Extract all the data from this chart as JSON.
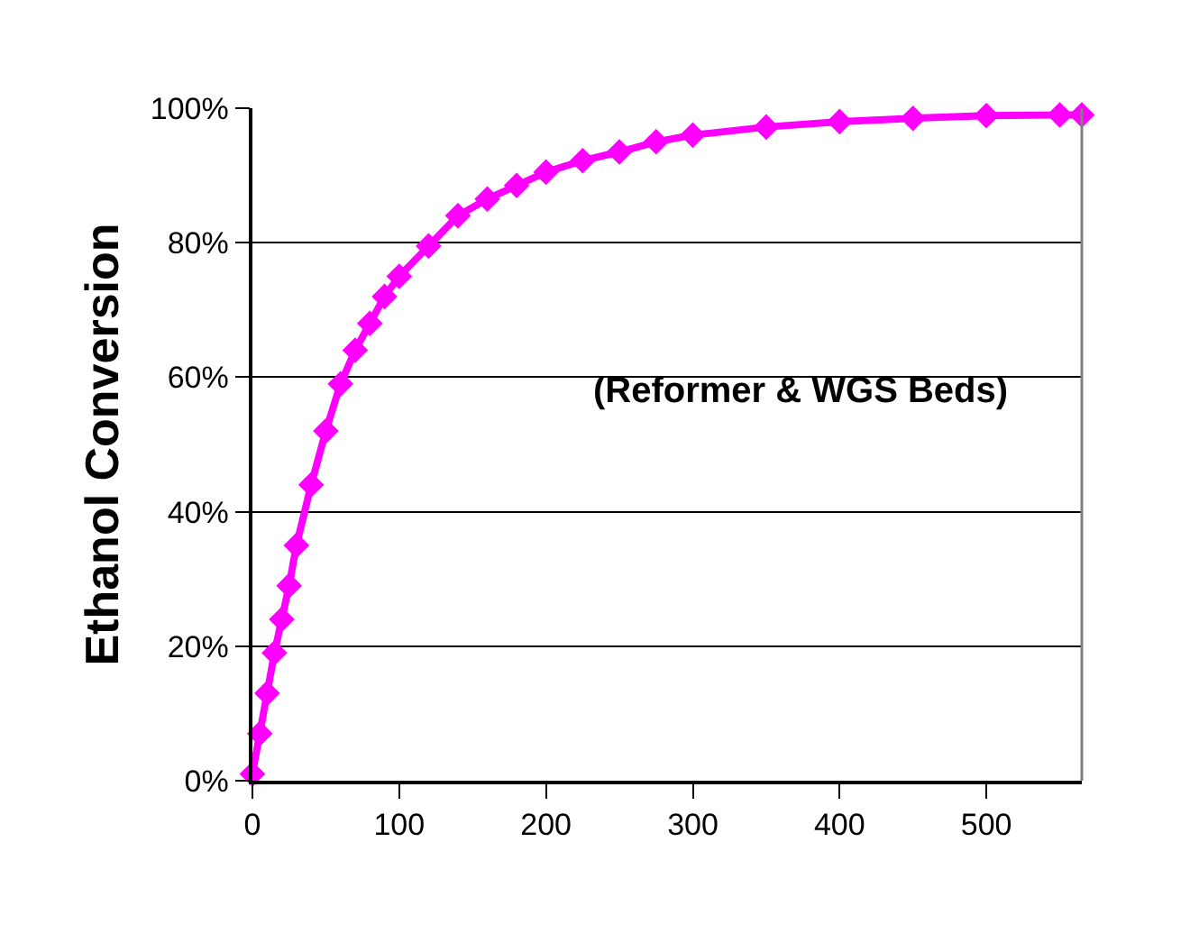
{
  "chart_data": {
    "type": "line",
    "ylabel": "Ethanol Conversion",
    "annotations": [
      "(Reformer & WGS Beds)"
    ],
    "x": [
      0,
      5,
      10,
      15,
      20,
      25,
      30,
      40,
      50,
      60,
      70,
      80,
      90,
      100,
      120,
      140,
      160,
      180,
      200,
      225,
      250,
      275,
      300,
      350,
      400,
      450,
      500,
      550,
      565
    ],
    "series": [
      {
        "color": "#ff00ff",
        "values": [
          1,
          7,
          13,
          19,
          24,
          29,
          35,
          44,
          52,
          59,
          64,
          68,
          72,
          75,
          79.5,
          84,
          86.5,
          88.5,
          90.5,
          92.2,
          93.5,
          95,
          96,
          97.2,
          98,
          98.5,
          98.9,
          99,
          99
        ]
      }
    ],
    "xlim": [
      0,
      565
    ],
    "xticks": [
      0,
      100,
      200,
      300,
      400,
      500
    ],
    "ylim": [
      0,
      100
    ],
    "yticks": [
      {
        "value": 0,
        "label": "0%"
      },
      {
        "value": 20,
        "label": "20%"
      },
      {
        "value": 40,
        "label": "40%"
      },
      {
        "value": 60,
        "label": "60%"
      },
      {
        "value": 80,
        "label": "80%"
      },
      {
        "value": 100,
        "label": "100%"
      }
    ],
    "grid": "y",
    "legend": false,
    "marker": "diamond",
    "line_style": "solid"
  }
}
